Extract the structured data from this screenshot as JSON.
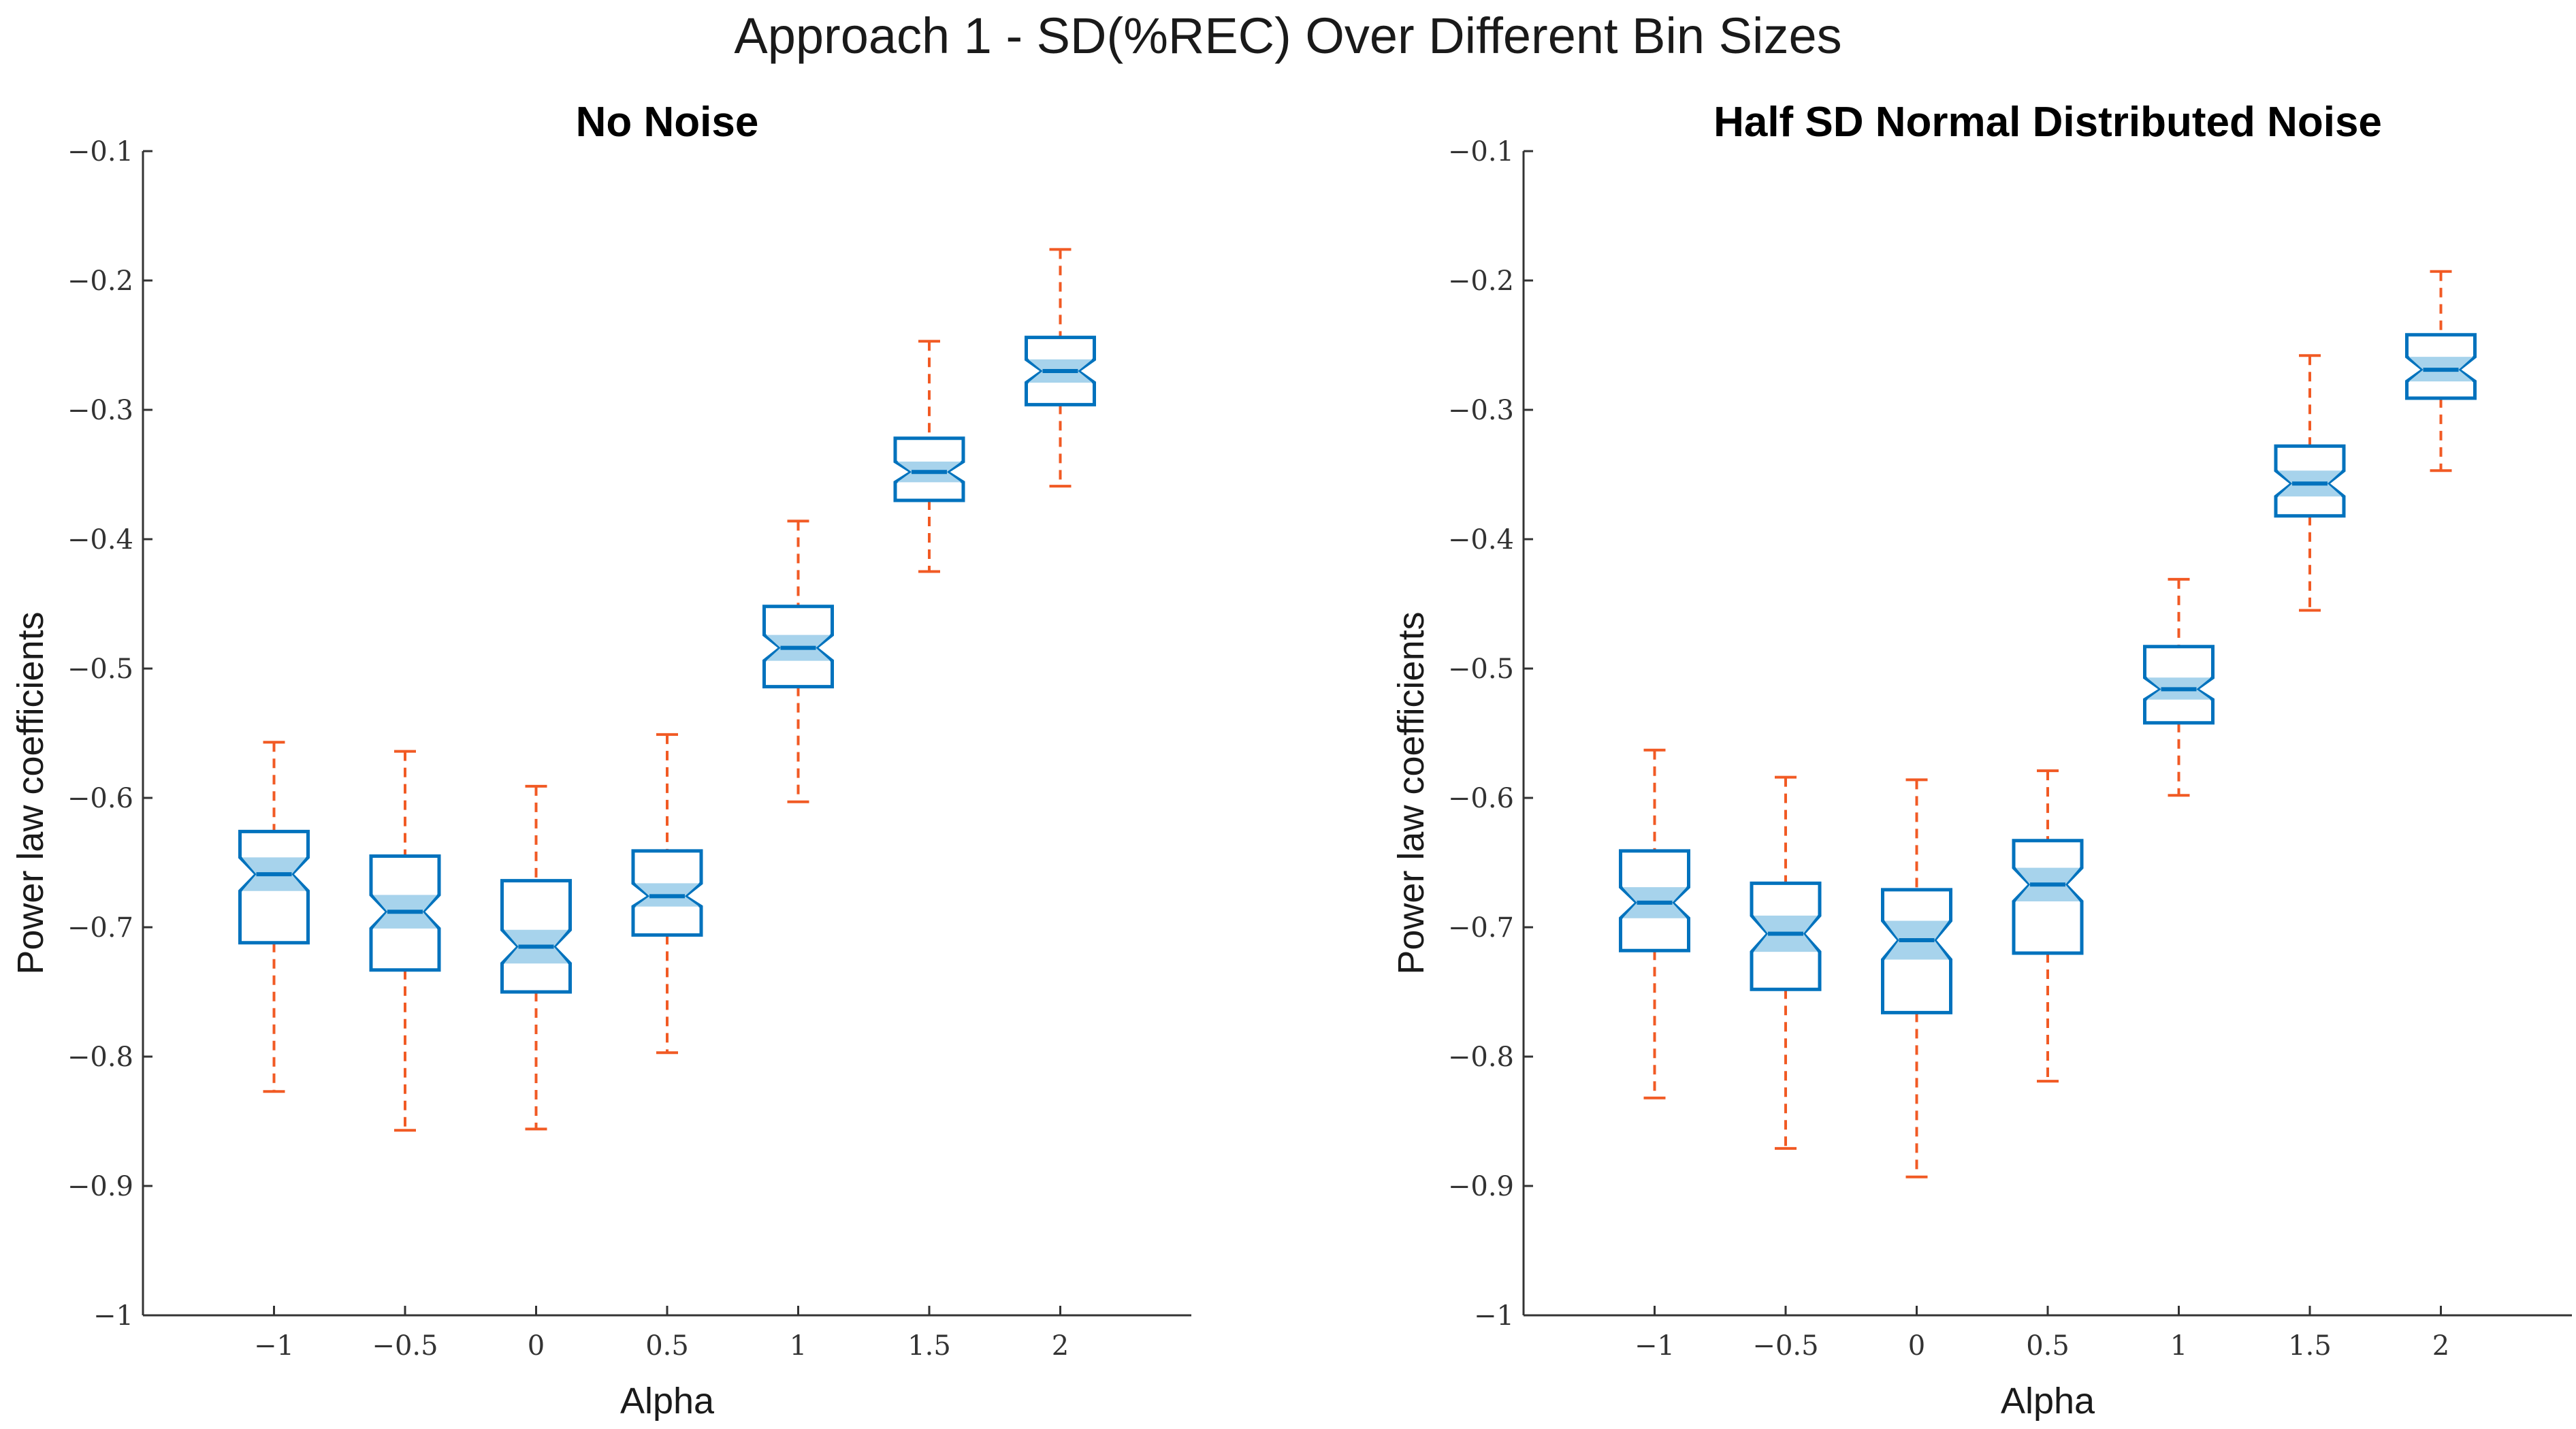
{
  "figure": {
    "title": "Approach 1 - SD(%REC) Over Different Bin Sizes"
  },
  "colors": {
    "box": "#0072bd",
    "notch": "#a7d3ec",
    "whisker": "#f15a24",
    "axis": "#333333"
  },
  "chart_data": [
    {
      "type": "box",
      "title": "No Noise",
      "xlabel": "Alpha",
      "ylabel": "Power law coefficients",
      "ylim": [
        -1,
        -0.1
      ],
      "xlim": [
        -1.5,
        2.5
      ],
      "xticks": [
        -1,
        -0.5,
        0,
        0.5,
        1,
        1.5,
        2
      ],
      "xtick_labels": [
        "−1",
        "−0.5",
        "0",
        "0.5",
        "1",
        "1.5",
        "2"
      ],
      "yticks": [
        -1,
        -0.9,
        -0.8,
        -0.7,
        -0.6,
        -0.5,
        -0.4,
        -0.3,
        -0.2,
        -0.1
      ],
      "ytick_labels": [
        "−1",
        "−0.9",
        "−0.8",
        "−0.7",
        "−0.6",
        "−0.5",
        "−0.4",
        "−0.3",
        "−0.2",
        "−0.1"
      ],
      "boxes": [
        {
          "x": -1,
          "whisker_low": -0.827,
          "q1": -0.712,
          "notch_low": -0.672,
          "median": -0.659,
          "notch_high": -0.646,
          "q3": -0.626,
          "whisker_high": -0.557
        },
        {
          "x": -0.5,
          "whisker_low": -0.857,
          "q1": -0.733,
          "notch_low": -0.701,
          "median": -0.688,
          "notch_high": -0.675,
          "q3": -0.645,
          "whisker_high": -0.564
        },
        {
          "x": 0,
          "whisker_low": -0.856,
          "q1": -0.75,
          "notch_low": -0.728,
          "median": -0.715,
          "notch_high": -0.702,
          "q3": -0.664,
          "whisker_high": -0.591
        },
        {
          "x": 0.5,
          "whisker_low": -0.797,
          "q1": -0.706,
          "notch_low": -0.684,
          "median": -0.676,
          "notch_high": -0.666,
          "q3": -0.641,
          "whisker_high": -0.551
        },
        {
          "x": 1,
          "whisker_low": -0.603,
          "q1": -0.514,
          "notch_low": -0.494,
          "median": -0.484,
          "notch_high": -0.474,
          "q3": -0.452,
          "whisker_high": -0.386
        },
        {
          "x": 1.5,
          "whisker_low": -0.425,
          "q1": -0.37,
          "notch_low": -0.356,
          "median": -0.348,
          "notch_high": -0.34,
          "q3": -0.322,
          "whisker_high": -0.247
        },
        {
          "x": 2,
          "whisker_low": -0.359,
          "q1": -0.296,
          "notch_low": -0.279,
          "median": -0.27,
          "notch_high": -0.261,
          "q3": -0.244,
          "whisker_high": -0.176
        }
      ]
    },
    {
      "type": "box",
      "title": "Half SD Normal Distributed Noise",
      "xlabel": "Alpha",
      "ylabel": "Power law coefficients",
      "ylim": [
        -1,
        -0.1
      ],
      "xlim": [
        -1.5,
        2.5
      ],
      "xticks": [
        -1,
        -0.5,
        0,
        0.5,
        1,
        1.5,
        2
      ],
      "xtick_labels": [
        "−1",
        "−0.5",
        "0",
        "0.5",
        "1",
        "1.5",
        "2"
      ],
      "yticks": [
        -1,
        -0.9,
        -0.8,
        -0.7,
        -0.6,
        -0.5,
        -0.4,
        -0.3,
        -0.2,
        -0.1
      ],
      "ytick_labels": [
        "−1",
        "−0.9",
        "−0.8",
        "−0.7",
        "−0.6",
        "−0.5",
        "−0.4",
        "−0.3",
        "−0.2",
        "−0.1"
      ],
      "boxes": [
        {
          "x": -1,
          "whisker_low": -0.832,
          "q1": -0.718,
          "notch_low": -0.693,
          "median": -0.681,
          "notch_high": -0.669,
          "q3": -0.641,
          "whisker_high": -0.563
        },
        {
          "x": -0.5,
          "whisker_low": -0.871,
          "q1": -0.748,
          "notch_low": -0.719,
          "median": -0.705,
          "notch_high": -0.691,
          "q3": -0.666,
          "whisker_high": -0.584
        },
        {
          "x": 0,
          "whisker_low": -0.893,
          "q1": -0.766,
          "notch_low": -0.725,
          "median": -0.71,
          "notch_high": -0.695,
          "q3": -0.671,
          "whisker_high": -0.586
        },
        {
          "x": 0.5,
          "whisker_low": -0.819,
          "q1": -0.72,
          "notch_low": -0.68,
          "median": -0.667,
          "notch_high": -0.654,
          "q3": -0.633,
          "whisker_high": -0.579
        },
        {
          "x": 1,
          "whisker_low": -0.598,
          "q1": -0.542,
          "notch_low": -0.524,
          "median": -0.516,
          "notch_high": -0.507,
          "q3": -0.483,
          "whisker_high": -0.431
        },
        {
          "x": 1.5,
          "whisker_low": -0.455,
          "q1": -0.382,
          "notch_low": -0.367,
          "median": -0.357,
          "notch_high": -0.347,
          "q3": -0.328,
          "whisker_high": -0.258
        },
        {
          "x": 2,
          "whisker_low": -0.347,
          "q1": -0.291,
          "notch_low": -0.278,
          "median": -0.269,
          "notch_high": -0.259,
          "q3": -0.242,
          "whisker_high": -0.193
        }
      ]
    }
  ]
}
